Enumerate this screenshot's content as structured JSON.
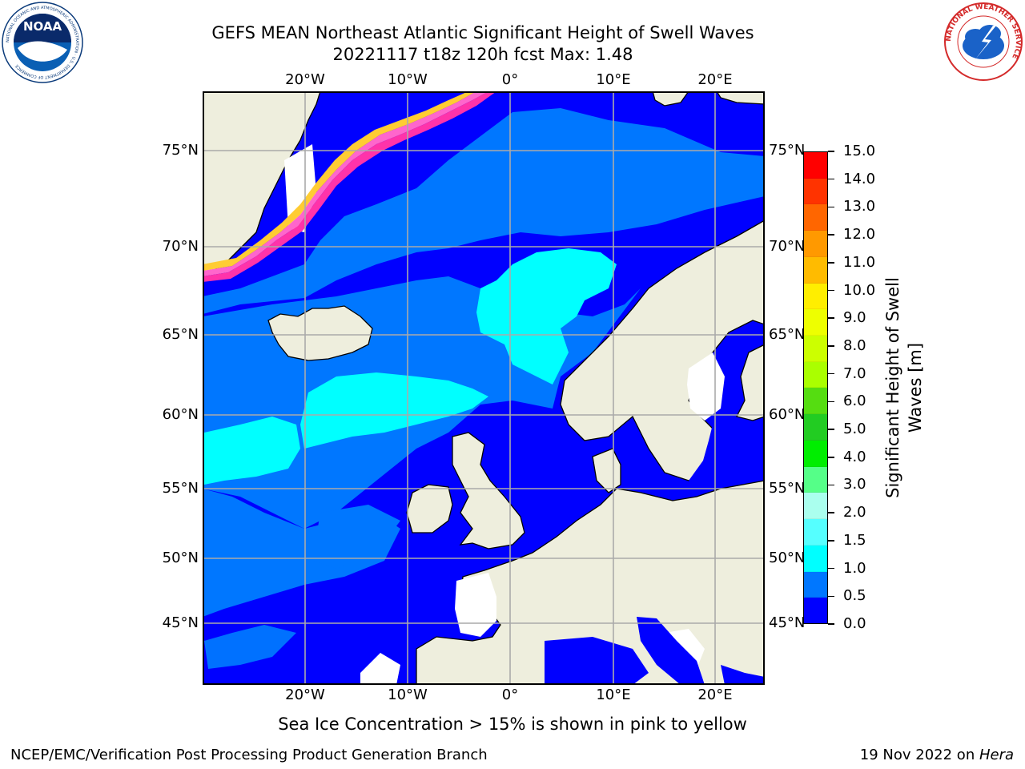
{
  "title": {
    "line1": "GEFS MEAN Northeast Atlantic Significant Height of Swell Waves",
    "line2": "20221117 t18z 120h fcst   Max: 1.48"
  },
  "map": {
    "lon_ticks_top": [
      "20°W",
      "10°W",
      "0°",
      "10°E",
      "20°E"
    ],
    "lon_ticks_bottom": [
      "20°W",
      "10°W",
      "0°",
      "10°E",
      "20°E"
    ],
    "lat_ticks_left": [
      "75°N",
      "70°N",
      "65°N",
      "60°N",
      "55°N",
      "50°N",
      "45°N"
    ],
    "lat_ticks_right": [
      "75°N",
      "70°N",
      "65°N",
      "60°N",
      "55°N",
      "50°N",
      "45°N"
    ]
  },
  "colorbar": {
    "label_line1": "Significant Height of Swell",
    "label_line2": "Waves [m]",
    "ticks": [
      "15.0",
      "14.0",
      "13.0",
      "12.0",
      "11.0",
      "10.0",
      "9.0",
      "8.0",
      "7.0",
      "6.0",
      "5.0",
      "4.0",
      "3.0",
      "2.0",
      "1.5",
      "1.0",
      "0.5",
      "0.0"
    ],
    "colors": [
      "#ff0000",
      "#ff3300",
      "#ff6600",
      "#ff9900",
      "#ffbb00",
      "#ffee00",
      "#eeff00",
      "#ccff00",
      "#aaff00",
      "#55dd11",
      "#22cc22",
      "#00ee00",
      "#55ff88",
      "#aaffee",
      "#55ffff",
      "#00ffff",
      "#0077ff",
      "#0000ff"
    ]
  },
  "caption": "Sea Ice Concentration > 15% is shown in pink to yellow",
  "footer": {
    "left": "NCEP/EMC/Verification Post Processing Product Generation Branch",
    "right_prefix": "19 Nov 2022 on ",
    "right_italic": "Hera"
  },
  "logos": {
    "noaa_text": "NOAA",
    "noaa_ring": "NATIONAL OCEANIC AND ATMOSPHERIC ADMINISTRATION · U.S. DEPARTMENT OF COMMERCE",
    "nws_ring": "NATIONAL WEATHER SERVICE"
  },
  "palette": {
    "land": "#eeeedd",
    "swell_0_05": "#0000ff",
    "swell_05_10": "#0077ff",
    "swell_10_15": "#00ffff",
    "no_data": "#ffffff",
    "grid": "#aaaaaa"
  }
}
